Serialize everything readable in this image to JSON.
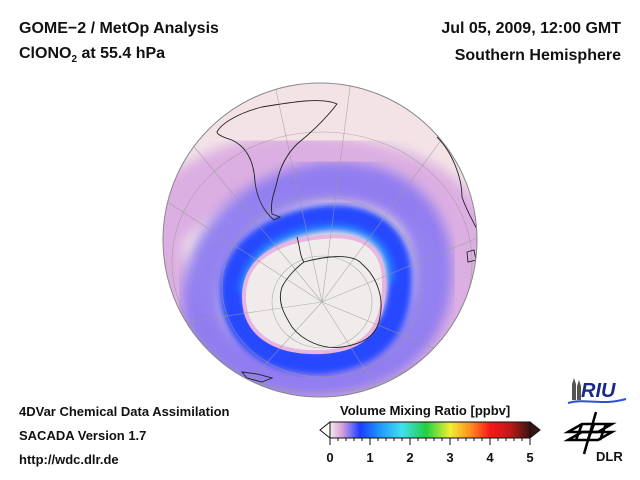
{
  "header": {
    "title": "GOME−2 / MetOp Analysis",
    "species_main": "ClONO",
    "species_sub": "2",
    "species_level": " at 55.4 hPa",
    "datetime": "Jul 05, 2009, 12:00 GMT",
    "region": "Southern Hemisphere"
  },
  "footer": {
    "line1": "4DVar Chemical Data Assimilation",
    "line2": "SACADA Version 1.7",
    "line3": "http://wdc.dlr.de"
  },
  "colorbar": {
    "title": "Volume Mixing Ratio [ppbv]",
    "ticks": [
      "0",
      "1",
      "2",
      "3",
      "4",
      "5"
    ],
    "range": [
      0,
      5
    ],
    "extend": "both",
    "stops": [
      {
        "v": 0.0,
        "c": "#f4ecec"
      },
      {
        "v": 0.3,
        "c": "#d9a0dc"
      },
      {
        "v": 0.55,
        "c": "#6e6cf6"
      },
      {
        "v": 0.75,
        "c": "#1b3cff"
      },
      {
        "v": 1.2,
        "c": "#1e90ff"
      },
      {
        "v": 1.8,
        "c": "#40e0f0"
      },
      {
        "v": 2.4,
        "c": "#20d040"
      },
      {
        "v": 3.0,
        "c": "#f0f030"
      },
      {
        "v": 3.5,
        "c": "#ff9020"
      },
      {
        "v": 4.0,
        "c": "#f81818"
      },
      {
        "v": 4.5,
        "c": "#c01818"
      },
      {
        "v": 5.0,
        "c": "#3a1414"
      }
    ]
  },
  "map": {
    "projection": "orthographic",
    "hemisphere": "south",
    "description": "ClONO2 field: low values (near 0) over polar vortex core above Antarctica, ring of elevated values (~0.6-1.5 ppbv) around the vortex edge, background ~0.2-0.4 ppbv at mid-latitudes"
  },
  "logos": {
    "riu": "RIU",
    "dlr": "DLR"
  }
}
